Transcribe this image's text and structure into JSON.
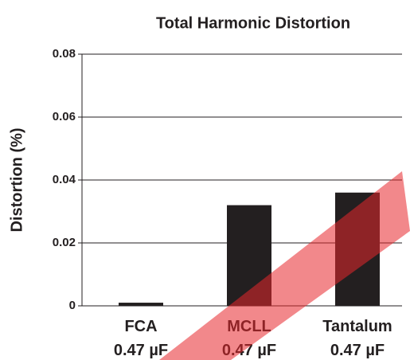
{
  "chart_data": {
    "type": "bar",
    "title": "Total Harmonic Distortion",
    "ylabel": "Distortion (%)",
    "categories": [
      "FCA\n0.47 µF",
      "MCLL\n0.47 µF",
      "Tantalum\n0.47 µF"
    ],
    "values": [
      0.001,
      0.032,
      0.036
    ],
    "color": "#231f20",
    "ylim": [
      0,
      0.08
    ],
    "yticks": [
      0,
      0.02,
      0.04,
      0.06,
      0.08
    ],
    "grid": true
  }
}
